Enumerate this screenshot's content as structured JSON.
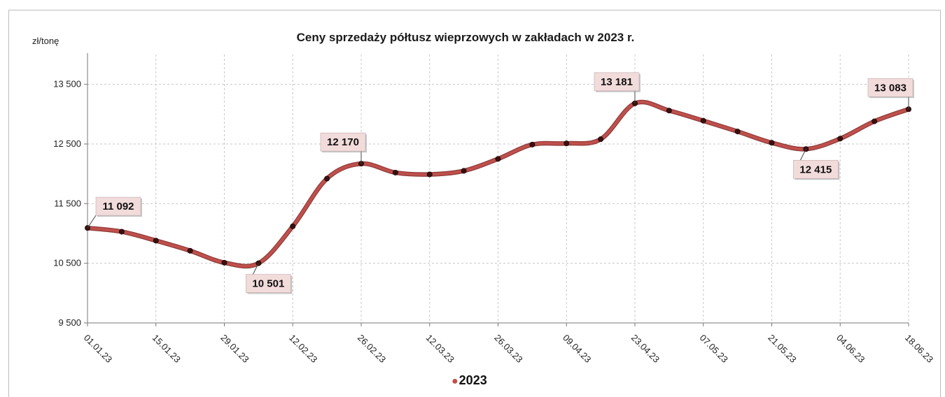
{
  "chart_data": {
    "type": "line",
    "title": "Ceny sprzedaży półtusz wieprzowych w zakładach w 2023 r.",
    "unit_label": "zł/tonę",
    "xlabel": "",
    "ylabel": "",
    "ylim": [
      9500,
      14000
    ],
    "yticks": [
      "9 500",
      "10 500",
      "11 500",
      "12 500",
      "13 500"
    ],
    "ytick_values": [
      9500,
      10500,
      11500,
      12500,
      13500
    ],
    "xticks": [
      "01.01.23",
      "15.01.23",
      "29.01.23",
      "12.02.23",
      "26.02.23",
      "12.03.23",
      "26.03.23",
      "09.04.23",
      "23.04.23",
      "07.05.23",
      "21.05.23",
      "04.06.23",
      "18.06.23"
    ],
    "grid": true,
    "legend_position": "bottom",
    "series": [
      {
        "name": "2023",
        "color": "#c0504d",
        "x": [
          "01.01.23",
          "08.01.23",
          "15.01.23",
          "22.01.23",
          "29.01.23",
          "05.02.23",
          "12.02.23",
          "19.02.23",
          "26.02.23",
          "05.03.23",
          "12.03.23",
          "19.03.23",
          "26.03.23",
          "02.04.23",
          "09.04.23",
          "16.04.23",
          "23.04.23",
          "30.04.23",
          "07.05.23",
          "14.05.23",
          "21.05.23",
          "28.05.23",
          "04.06.23",
          "11.06.23",
          "18.06.23"
        ],
        "values": [
          11092,
          11030,
          10880,
          10710,
          10510,
          10501,
          11120,
          11920,
          12170,
          12020,
          11990,
          12050,
          12250,
          12490,
          12510,
          12580,
          13181,
          13060,
          12890,
          12710,
          12520,
          12415,
          12590,
          12880,
          13083
        ]
      }
    ],
    "data_labels": [
      {
        "index": 0,
        "text": "11 092",
        "side": "above-right"
      },
      {
        "index": 5,
        "text": "10 501",
        "side": "below"
      },
      {
        "index": 8,
        "text": "12 170",
        "side": "above-left"
      },
      {
        "index": 16,
        "text": "13 181",
        "side": "above-left"
      },
      {
        "index": 21,
        "text": "12 415",
        "side": "below"
      },
      {
        "index": 24,
        "text": "13 083",
        "side": "above-left"
      }
    ],
    "label_box_color": "#f2dcdb"
  }
}
